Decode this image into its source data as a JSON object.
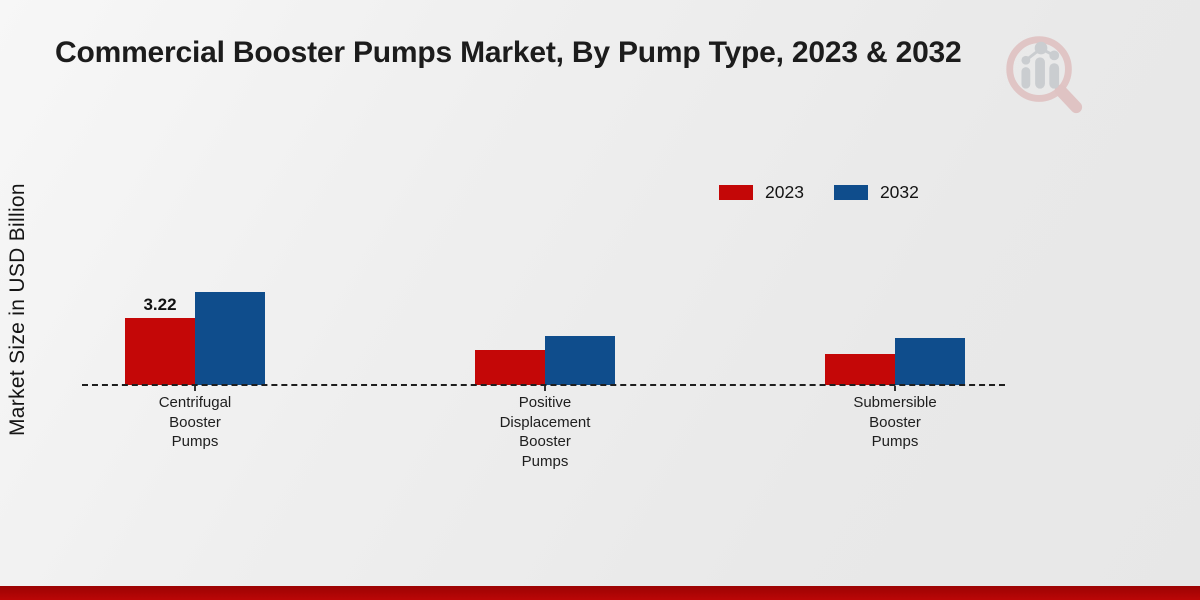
{
  "chart_data": {
    "type": "bar",
    "title": "Commercial Booster Pumps Market, By Pump Type, 2023 & 2032",
    "ylabel": "Market Size in USD Billion",
    "xlabel": "",
    "categories": [
      "Centrifugal\nBooster\nPumps",
      "Positive\nDisplacement\nBooster\nPumps",
      "Submersible\nBooster\nPumps"
    ],
    "series": [
      {
        "name": "2023",
        "color": "#c40707",
        "values": [
          3.22,
          1.68,
          1.49
        ],
        "data_labels": [
          "3.22",
          "",
          ""
        ]
      },
      {
        "name": "2032",
        "color": "#0f4d8c",
        "values": [
          4.47,
          2.36,
          2.26
        ],
        "data_labels": [
          "",
          "",
          ""
        ]
      }
    ],
    "ylim": [
      0,
      5
    ],
    "grid": false,
    "y_ticks_visible": false,
    "baseline_style": "dashed",
    "legend_position": "top-right"
  },
  "footer": {
    "strip_color": "#b00505"
  },
  "logo": {
    "name": "market-research-logo",
    "ring_color": "#e0c2c2",
    "bar_color": "#c7cace"
  }
}
